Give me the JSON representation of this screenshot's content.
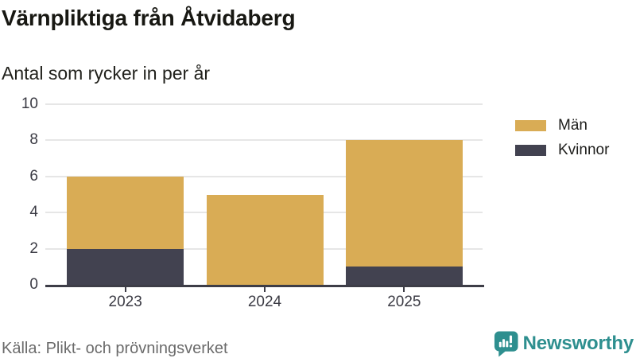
{
  "header": {
    "title": "Värnpliktiga från Åtvidaberg",
    "subtitle": "Antal som rycker in per år"
  },
  "legend": [
    {
      "label": "Män",
      "color": "#d9ac55"
    },
    {
      "label": "Kvinnor",
      "color": "#424250"
    }
  ],
  "chart_data": {
    "type": "bar",
    "stacked": true,
    "title": "Värnpliktiga från Åtvidaberg",
    "subtitle": "Antal som rycker in per år",
    "categories": [
      "2023",
      "2024",
      "2025"
    ],
    "series": [
      {
        "name": "Män",
        "color": "#d9ac55",
        "values": [
          4,
          5,
          7
        ]
      },
      {
        "name": "Kvinnor",
        "color": "#424250",
        "values": [
          2,
          0,
          1
        ]
      }
    ],
    "totals": [
      6,
      5,
      8
    ],
    "ylim": [
      0,
      10
    ],
    "yticks": [
      0,
      2,
      4,
      6,
      8,
      10
    ],
    "grid": true,
    "legend_position": "right"
  },
  "footer": {
    "source": "Källa: Plikt- och prövningsverket"
  },
  "brand": {
    "name": "Newsworthy",
    "color": "#2e8f8f"
  }
}
